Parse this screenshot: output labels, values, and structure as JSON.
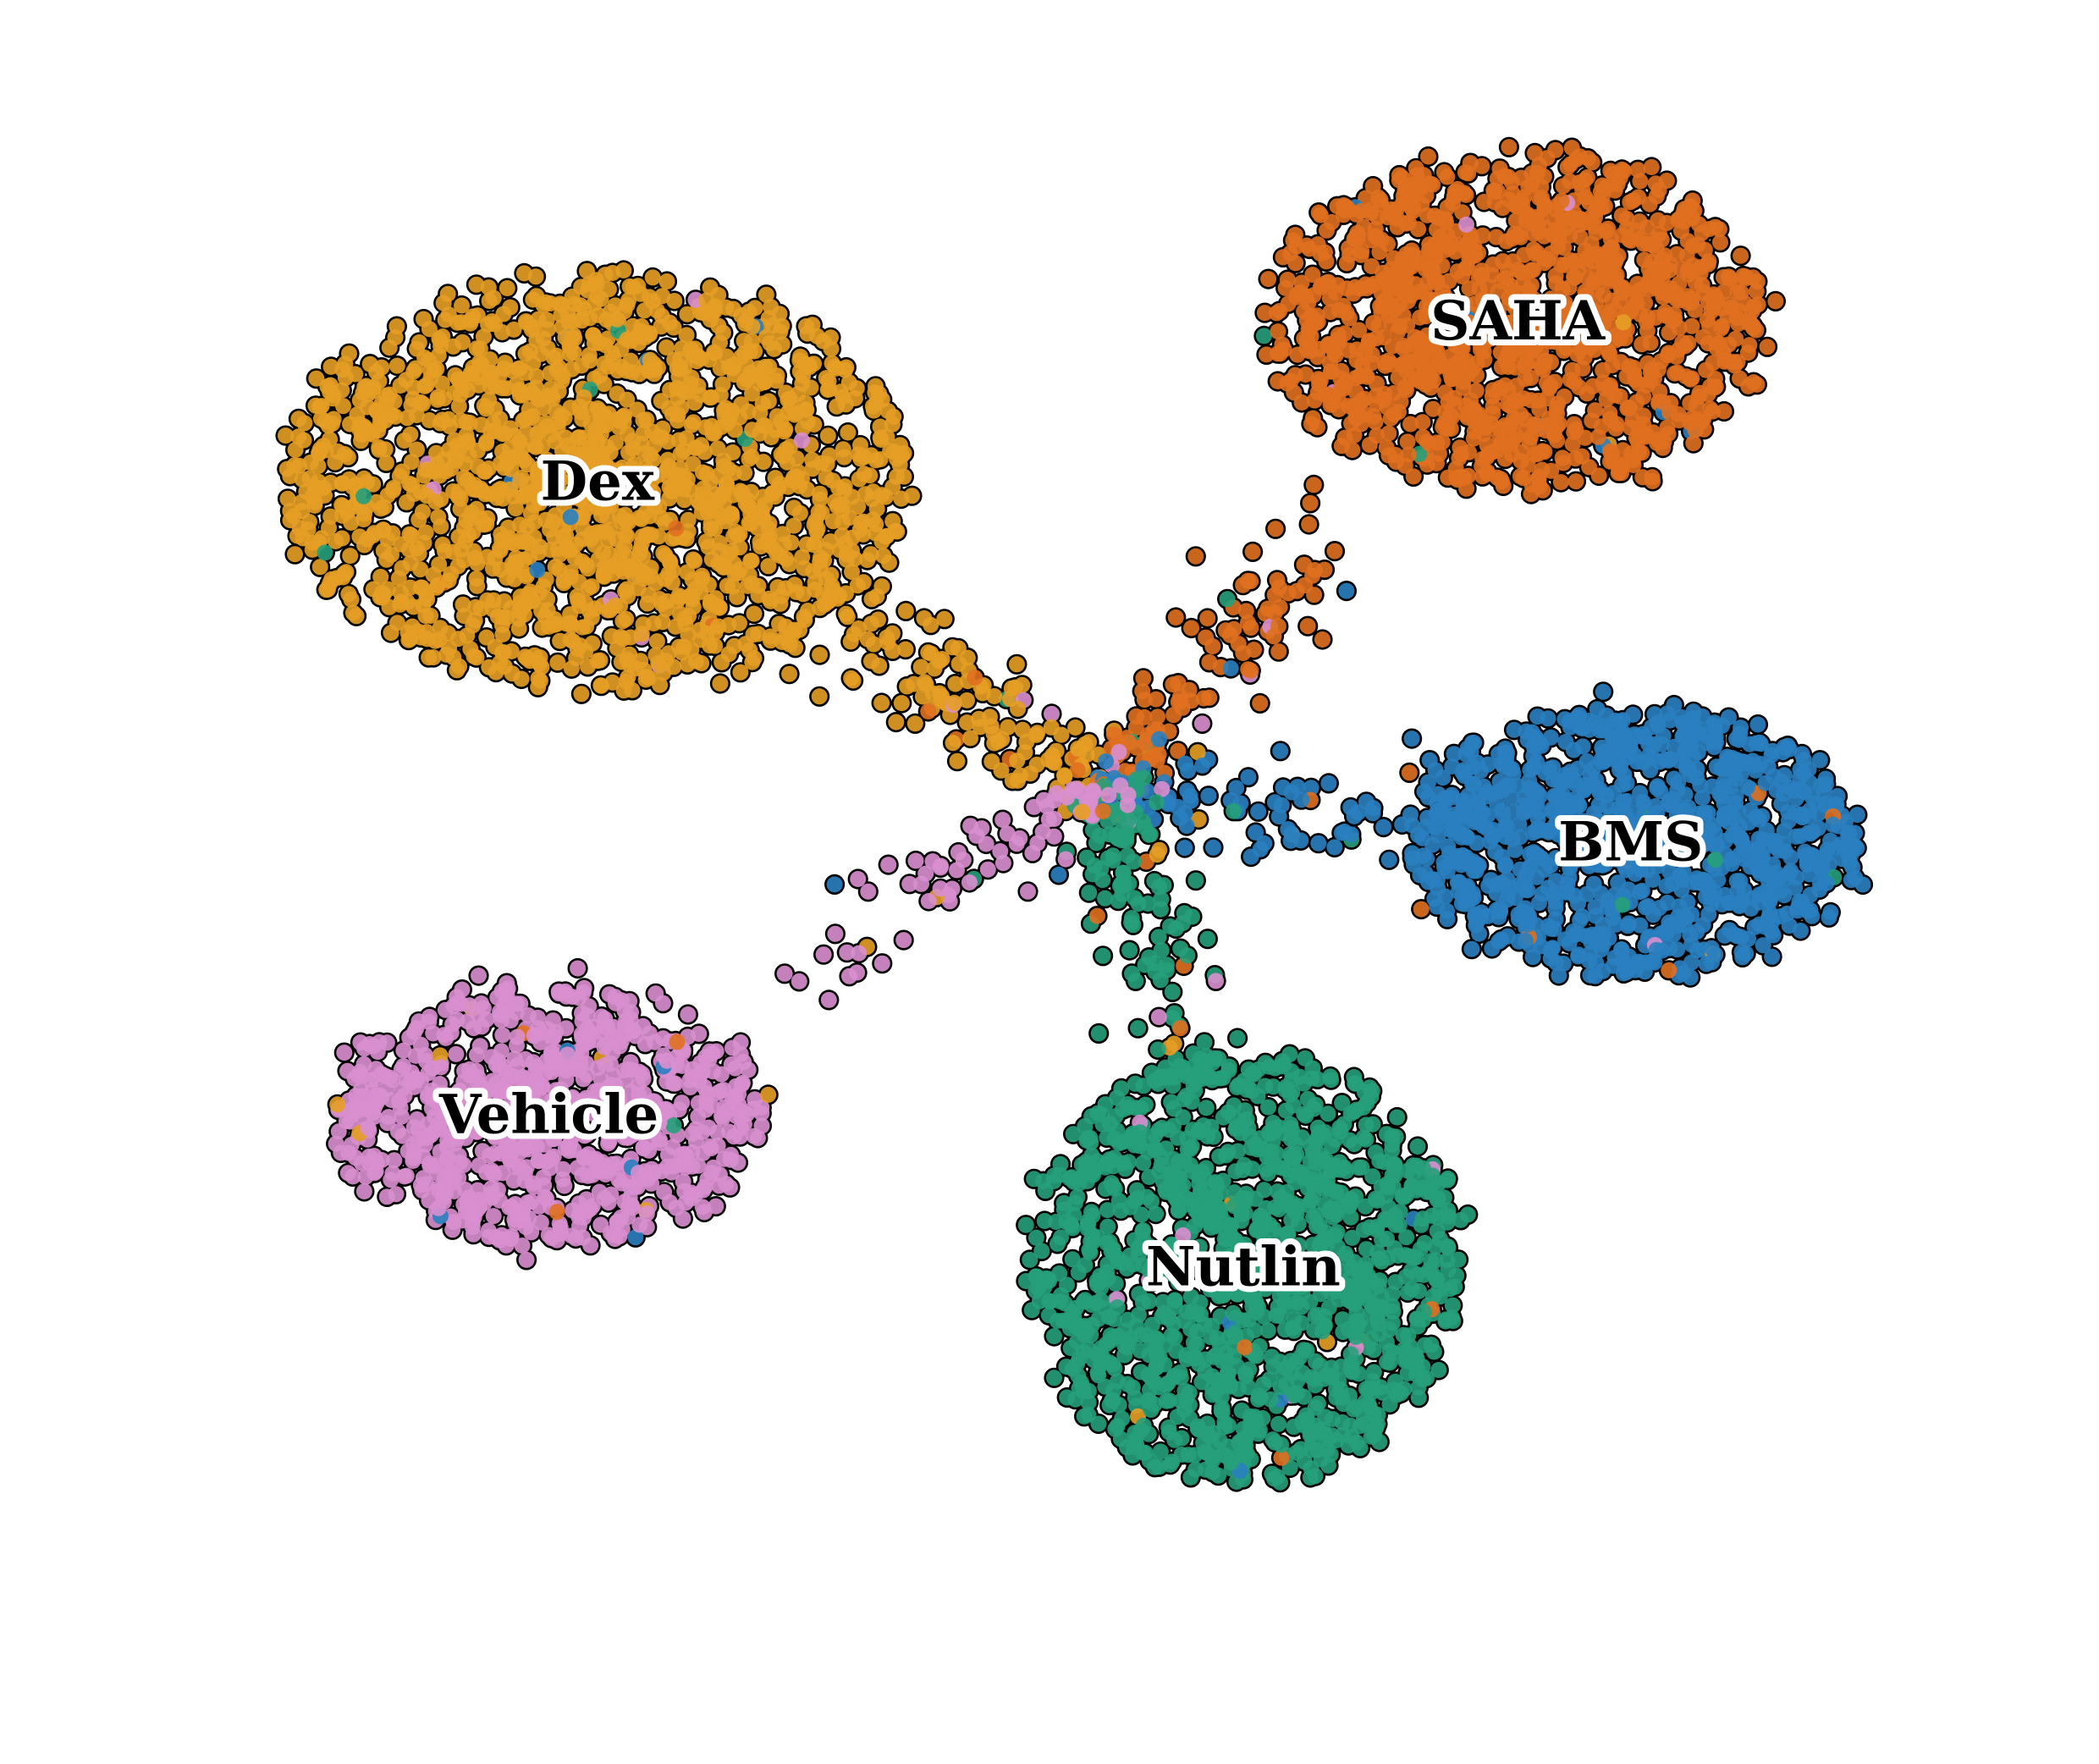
{
  "chart_data": {
    "type": "scatter",
    "title": "",
    "xlabel": "",
    "ylabel": "",
    "axes_visible": false,
    "grid": false,
    "legend": "none",
    "marker_edge_color": "#000000",
    "clusters": [
      {
        "name": "Dex",
        "color": "#e69f25",
        "center": [
          -2.8,
          2.0
        ],
        "spread": [
          1.95,
          1.3
        ],
        "n_points": 1650
      },
      {
        "name": "SAHA",
        "color": "#e07020",
        "center": [
          2.9,
          3.0
        ],
        "spread": [
          1.55,
          1.05
        ],
        "n_points": 1250
      },
      {
        "name": "BMS",
        "color": "#2a80c0",
        "center": [
          3.6,
          -0.25
        ],
        "spread": [
          1.4,
          0.85
        ],
        "n_points": 1000
      },
      {
        "name": "Nutlin",
        "color": "#26a07a",
        "center": [
          1.2,
          -2.9
        ],
        "spread": [
          1.35,
          1.35
        ],
        "n_points": 1350
      },
      {
        "name": "Vehicle",
        "color": "#d98fcf",
        "center": [
          -3.1,
          -1.95
        ],
        "spread": [
          1.35,
          0.82
        ],
        "n_points": 850
      }
    ],
    "xlim": [
      -6.5,
      6.5
    ],
    "ylim": [
      -6.0,
      5.0
    ]
  }
}
